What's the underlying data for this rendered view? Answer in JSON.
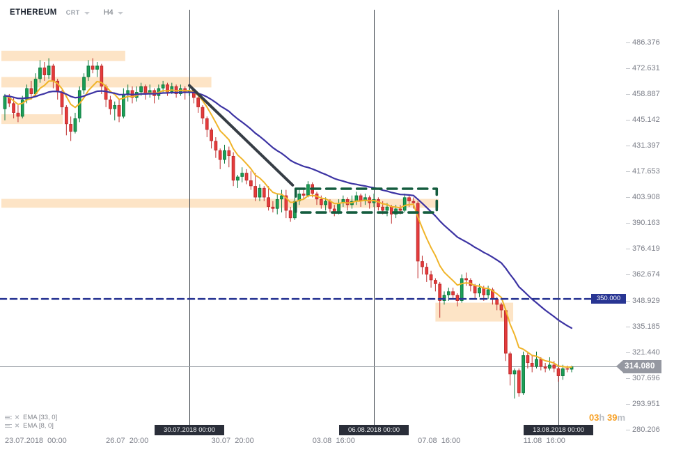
{
  "header": {
    "symbol": "ETHEREUM",
    "exchange": "CRT",
    "timeframe": "H4"
  },
  "legend": {
    "items": [
      {
        "label": "EMA [33, 0]",
        "period": 33
      },
      {
        "label": "EMA [8, 0]",
        "period": 8
      }
    ]
  },
  "countdown": {
    "hours": "03",
    "hours_unit": "h",
    "minutes": " 39",
    "minutes_unit": "m"
  },
  "colors": {
    "candle_up": "#1ca158",
    "candle_up_border": "#0f7a3f",
    "candle_down": "#e73b3c",
    "candle_down_border": "#bf2f2f",
    "zone_fill": "rgba(247,148,29,0.25)",
    "dashed_box": "#145c3e",
    "hline": "#283593",
    "ema_fast": "#f0b429",
    "ema_slow": "#3c33a3",
    "trendline": "#363d45",
    "vline": "#40464d",
    "price_line": "#9aa0a6",
    "badge_price_bg": "#9598a1",
    "badge_hline_bg": "#283593",
    "datebox_bg": "#2a2e39"
  },
  "chart_data": {
    "type": "candlestick",
    "symbol": "ETHEREUM",
    "interval": "H4",
    "start_time": "23.07.2018 00:00",
    "ylim": [
      280.206,
      486.376
    ],
    "y_axis_ticks": [
      "486.376",
      "472.631",
      "458.887",
      "445.142",
      "431.397",
      "417.653",
      "403.908",
      "390.163",
      "376.419",
      "362.674",
      "348.929",
      "335.185",
      "321.440",
      "307.696",
      "293.951",
      "280.206"
    ],
    "x_axis_ticks": [
      {
        "label": "23.07.2018  00:00",
        "i": 0
      },
      {
        "label": "26.07  20:00",
        "i": 23
      },
      {
        "label": "30.07  20:00",
        "i": 47
      },
      {
        "label": "03.08  16:00",
        "i": 70
      },
      {
        "label": "07.08  16:00",
        "i": 94
      },
      {
        "label": "11.08  16:00",
        "i": 118
      }
    ],
    "vertical_markers": [
      {
        "label": "30.07.2018 00:00",
        "i": 42
      },
      {
        "label": "06.08.2018 00:00",
        "i": 84
      },
      {
        "label": "13.08.2018 00:00",
        "i": 126
      }
    ],
    "ema_overlays": [
      {
        "name": "EMA",
        "period": 33,
        "color": "#3c33a3"
      },
      {
        "name": "EMA",
        "period": 8,
        "color": "#f0b429"
      }
    ],
    "zones": [
      {
        "i0": -0.8,
        "i1": 27.4,
        "p0": 476.5,
        "p1": 482.0
      },
      {
        "i0": -0.8,
        "i1": 47.0,
        "p0": 462.5,
        "p1": 468.0
      },
      {
        "i0": -0.8,
        "i1": 13.2,
        "p0": 443.0,
        "p1": 448.2
      },
      {
        "i0": -0.8,
        "i1": 98.7,
        "p0": 398.5,
        "p1": 403.2
      },
      {
        "i0": 98.0,
        "i1": 115.7,
        "p0": 338.0,
        "p1": 348.0
      }
    ],
    "dashed_box": {
      "i0": 66.2,
      "i1": 98.3,
      "p0": 396.0,
      "p1": 408.6
    },
    "hline": {
      "price": 350.0,
      "label": "350.000"
    },
    "current_price": {
      "value": 314.08,
      "label": "314.080"
    },
    "trendline": {
      "i1": 42.0,
      "p1": 463.5,
      "i2": 65.5,
      "p2": 410.5
    },
    "candles_ohlc": [
      [
        451,
        459,
        445,
        458
      ],
      [
        458,
        459,
        452,
        454
      ],
      [
        454,
        457,
        446,
        449
      ],
      [
        449,
        453,
        444,
        447
      ],
      [
        447,
        458,
        446,
        456
      ],
      [
        456,
        464,
        454,
        462
      ],
      [
        462,
        466,
        456,
        459
      ],
      [
        459,
        470,
        458,
        467
      ],
      [
        467,
        477,
        465,
        473
      ],
      [
        473,
        476,
        466,
        469
      ],
      [
        469,
        478,
        467,
        474
      ],
      [
        474,
        475,
        462,
        466
      ],
      [
        466,
        467,
        456,
        460
      ],
      [
        460,
        461,
        448,
        452
      ],
      [
        452,
        453,
        437,
        443
      ],
      [
        443,
        447,
        434,
        439
      ],
      [
        439,
        449,
        438,
        446
      ],
      [
        446,
        463,
        444,
        461
      ],
      [
        461,
        470,
        459,
        468
      ],
      [
        468,
        477,
        466,
        474
      ],
      [
        474,
        478,
        470,
        472
      ],
      [
        472,
        476,
        468,
        474
      ],
      [
        474,
        475,
        459,
        463
      ],
      [
        463,
        464,
        452,
        456
      ],
      [
        456,
        458,
        448,
        451
      ],
      [
        451,
        455,
        445,
        453
      ],
      [
        453,
        456,
        444,
        447
      ],
      [
        447,
        462,
        446,
        459
      ],
      [
        459,
        464,
        455,
        461
      ],
      [
        461,
        463,
        454,
        457
      ],
      [
        457,
        463,
        455,
        460
      ],
      [
        460,
        465,
        458,
        463
      ],
      [
        463,
        464,
        456,
        459
      ],
      [
        459,
        464,
        457,
        461
      ],
      [
        461,
        462,
        454,
        458
      ],
      [
        458,
        464,
        456,
        462
      ],
      [
        462,
        466,
        460,
        464
      ],
      [
        464,
        465,
        458,
        460
      ],
      [
        460,
        465,
        459,
        463
      ],
      [
        463,
        464,
        457,
        459
      ],
      [
        459,
        464,
        458,
        462
      ],
      [
        462,
        463,
        456,
        460
      ],
      [
        460,
        464,
        458,
        461
      ],
      [
        461,
        462,
        454,
        457
      ],
      [
        457,
        458,
        449,
        452
      ],
      [
        452,
        453,
        443,
        446
      ],
      [
        446,
        447,
        436,
        440
      ],
      [
        440,
        441,
        430,
        434
      ],
      [
        434,
        436,
        425,
        429
      ],
      [
        429,
        430,
        419,
        424
      ],
      [
        424,
        432,
        422,
        429
      ],
      [
        429,
        431,
        420,
        426
      ],
      [
        426,
        428,
        410,
        413
      ],
      [
        413,
        416,
        409,
        415
      ],
      [
        415,
        420,
        412,
        417
      ],
      [
        417,
        419,
        411,
        413
      ],
      [
        413,
        418,
        408,
        410
      ],
      [
        410,
        417,
        402,
        404
      ],
      [
        404,
        411,
        402,
        409
      ],
      [
        409,
        410,
        402,
        404
      ],
      [
        404,
        410,
        397,
        399
      ],
      [
        399,
        402,
        396,
        398
      ],
      [
        398,
        406,
        395,
        403
      ],
      [
        403,
        408,
        396,
        405
      ],
      [
        405,
        408,
        393,
        397
      ],
      [
        397,
        399,
        391,
        393
      ],
      [
        393,
        404,
        392,
        402
      ],
      [
        402,
        408,
        400,
        406
      ],
      [
        406,
        409,
        403,
        405
      ],
      [
        405,
        412.6,
        404,
        411
      ],
      [
        411,
        412,
        404,
        406
      ],
      [
        406,
        407,
        400,
        403
      ],
      [
        403,
        405,
        398,
        400
      ],
      [
        400,
        404,
        397,
        402
      ],
      [
        402,
        403,
        396,
        398
      ],
      [
        398,
        400,
        394,
        396
      ],
      [
        396,
        403,
        395,
        401
      ],
      [
        401,
        405,
        399,
        403
      ],
      [
        403,
        404,
        397,
        400
      ],
      [
        400,
        405,
        398,
        402
      ],
      [
        402,
        407,
        400,
        405
      ],
      [
        405,
        406,
        399,
        402
      ],
      [
        402,
        406,
        400,
        404
      ],
      [
        404,
        405,
        398,
        401
      ],
      [
        401,
        406,
        399,
        403
      ],
      [
        403,
        404,
        397,
        399
      ],
      [
        399,
        402,
        395,
        397
      ],
      [
        397,
        401,
        394,
        399
      ],
      [
        399,
        400,
        390,
        395
      ],
      [
        395,
        400,
        393,
        398
      ],
      [
        398,
        400,
        395,
        397
      ],
      [
        397,
        406,
        396,
        404
      ],
      [
        404,
        405,
        399,
        402
      ],
      [
        402,
        404,
        398,
        401
      ],
      [
        401,
        402,
        361,
        370
      ],
      [
        370,
        373,
        363,
        367
      ],
      [
        367,
        369,
        359,
        363
      ],
      [
        363,
        365,
        356,
        360
      ],
      [
        360,
        361,
        354,
        358
      ],
      [
        358,
        359,
        340,
        349
      ],
      [
        349,
        354,
        347,
        352
      ],
      [
        352,
        356,
        349,
        354
      ],
      [
        354,
        356,
        350,
        352
      ],
      [
        352,
        353,
        346,
        349
      ],
      [
        349,
        363,
        348,
        361
      ],
      [
        361,
        364,
        357,
        360
      ],
      [
        360,
        361,
        354,
        357
      ],
      [
        357,
        358,
        350,
        353
      ],
      [
        353,
        358,
        351,
        356
      ],
      [
        356,
        357,
        349,
        352
      ],
      [
        352,
        357,
        350,
        355
      ],
      [
        355,
        356,
        347,
        350
      ],
      [
        350,
        351,
        344,
        347
      ],
      [
        347,
        348,
        340,
        344
      ],
      [
        344,
        345,
        317,
        321
      ],
      [
        321,
        322,
        304,
        310
      ],
      [
        310,
        313,
        297,
        312
      ],
      [
        312,
        313,
        298,
        300
      ],
      [
        300,
        322,
        299,
        320
      ],
      [
        320,
        322,
        313,
        316
      ],
      [
        316,
        320,
        311,
        314
      ],
      [
        314,
        322,
        313,
        318
      ],
      [
        318,
        319,
        312,
        314
      ],
      [
        314,
        316,
        311,
        313
      ],
      [
        313,
        319,
        312,
        315
      ],
      [
        315,
        317,
        311,
        313
      ],
      [
        313,
        314,
        306,
        309
      ],
      [
        309,
        315,
        307,
        313
      ],
      [
        313,
        314.5,
        311,
        312.5
      ],
      [
        312.5,
        314.5,
        311,
        314.08
      ]
    ]
  }
}
